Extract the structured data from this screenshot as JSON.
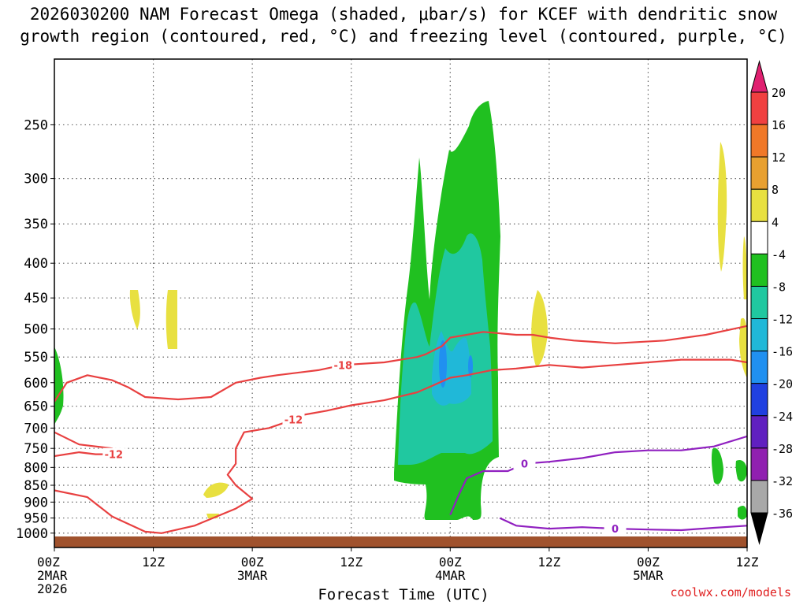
{
  "title": {
    "line1": "2026030200 NAM Forecast Omega (shaded, μbar/s) for KCEF with dendritic snow",
    "line2": "growth region (contoured, red, °C) and freezing level (contoured, purple, °C)"
  },
  "credit": "coolwx.com/models",
  "chart_data": {
    "type": "contour-cross-section",
    "title": "2026030200 NAM Forecast Omega (shaded, μbar/s) for KCEF with dendritic snow growth region (contoured, red, °C) and freezing level (contoured, purple, °C)",
    "xlabel": "Forecast Time (UTC)",
    "ylabel": "",
    "x_range_hours": [
      0,
      84
    ],
    "y_range_hPa": [
      1050,
      200
    ],
    "y_ticks": [
      250,
      300,
      350,
      400,
      450,
      500,
      550,
      600,
      650,
      700,
      750,
      800,
      850,
      900,
      950,
      1000
    ],
    "x_ticks": [
      {
        "hour": 0,
        "l1": "00Z",
        "l2": "2MAR",
        "l3": "2026"
      },
      {
        "hour": 12,
        "l1": "12Z",
        "l2": "",
        "l3": ""
      },
      {
        "hour": 24,
        "l1": "00Z",
        "l2": "3MAR",
        "l3": ""
      },
      {
        "hour": 36,
        "l1": "12Z",
        "l2": "",
        "l3": ""
      },
      {
        "hour": 48,
        "l1": "00Z",
        "l2": "4MAR",
        "l3": ""
      },
      {
        "hour": 60,
        "l1": "12Z",
        "l2": "",
        "l3": ""
      },
      {
        "hour": 72,
        "l1": "00Z",
        "l2": "5MAR",
        "l3": ""
      },
      {
        "hour": 84,
        "l1": "12Z",
        "l2": "",
        "l3": ""
      }
    ],
    "colorbar": {
      "levels": [
        "20",
        "16",
        "12",
        "8",
        "4",
        "-4",
        "-8",
        "-12",
        "-16",
        "-20",
        "-24",
        "-28",
        "-32",
        "-36"
      ],
      "colors": [
        "#e02070",
        "#f04040",
        "#f07828",
        "#e8a030",
        "#e8e040",
        "#ffffff",
        "#20c020",
        "#20c8a0",
        "#20b8d8",
        "#2090f0",
        "#2040e0",
        "#6020c0",
        "#9020b0",
        "#a8a8a8",
        "#000000"
      ]
    },
    "contours": [
      {
        "name": "dgz-minus18",
        "label": "-18",
        "color": "#e84040",
        "points": [
          [
            0,
            640
          ],
          [
            1.5,
            600
          ],
          [
            4,
            585
          ],
          [
            7,
            595
          ],
          [
            9,
            610
          ],
          [
            11,
            630
          ],
          [
            15,
            635
          ],
          [
            19,
            630
          ],
          [
            22,
            600
          ],
          [
            25,
            590
          ],
          [
            27,
            585
          ],
          [
            32,
            575
          ],
          [
            35,
            565
          ],
          [
            40,
            560
          ],
          [
            44,
            550
          ],
          [
            45,
            545
          ],
          [
            47,
            530
          ],
          [
            48,
            515
          ],
          [
            50,
            510
          ],
          [
            52,
            505
          ],
          [
            56,
            510
          ],
          [
            58,
            510
          ],
          [
            60,
            515
          ],
          [
            63,
            520
          ],
          [
            68,
            525
          ],
          [
            74,
            520
          ],
          [
            79,
            510
          ],
          [
            84,
            495
          ]
        ]
      },
      {
        "name": "dgz-minus12",
        "label": "-12",
        "color": "#e84040",
        "points": [
          [
            0,
            710
          ],
          [
            3,
            740
          ],
          [
            7,
            750
          ],
          [
            7.2,
            765
          ],
          [
            5,
            765
          ],
          [
            3,
            760
          ],
          [
            0,
            770
          ]
        ]
      },
      {
        "name": "dgz-minus12-main",
        "label": "-12",
        "color": "#e84040",
        "points": [
          [
            0,
            865
          ],
          [
            4,
            885
          ],
          [
            7,
            945
          ],
          [
            11,
            995
          ],
          [
            13,
            1000
          ],
          [
            17,
            975
          ],
          [
            22,
            920
          ],
          [
            24,
            890
          ],
          [
            22,
            850
          ],
          [
            21,
            820
          ],
          [
            22,
            790
          ],
          [
            22,
            750
          ],
          [
            23,
            710
          ],
          [
            26,
            700
          ],
          [
            29,
            680
          ],
          [
            30,
            670
          ],
          [
            33,
            660
          ],
          [
            36,
            648
          ],
          [
            40,
            637
          ],
          [
            44,
            620
          ],
          [
            46,
            605
          ],
          [
            48,
            590
          ],
          [
            50,
            585
          ],
          [
            53,
            575
          ],
          [
            56,
            572
          ],
          [
            60,
            565
          ],
          [
            64,
            570
          ],
          [
            68,
            565
          ],
          [
            72,
            560
          ],
          [
            76,
            555
          ],
          [
            82,
            555
          ],
          [
            84,
            560
          ]
        ]
      },
      {
        "name": "freezing-level",
        "label": "0",
        "color": "#9020c0",
        "points": [
          [
            48,
            940
          ],
          [
            49,
            880
          ],
          [
            50,
            830
          ],
          [
            52,
            810
          ],
          [
            55,
            810
          ],
          [
            57,
            790
          ],
          [
            60,
            785
          ],
          [
            64,
            775
          ],
          [
            68,
            760
          ],
          [
            72,
            755
          ],
          [
            76,
            755
          ],
          [
            80,
            745
          ],
          [
            84,
            720
          ]
        ]
      },
      {
        "name": "freezing-level-low",
        "label": "0",
        "color": "#9020c0",
        "points": [
          [
            54,
            950
          ],
          [
            56,
            975
          ],
          [
            60,
            985
          ],
          [
            64,
            980
          ],
          [
            68,
            985
          ],
          [
            72,
            988
          ],
          [
            76,
            990
          ],
          [
            80,
            982
          ],
          [
            84,
            975
          ]
        ]
      }
    ]
  }
}
